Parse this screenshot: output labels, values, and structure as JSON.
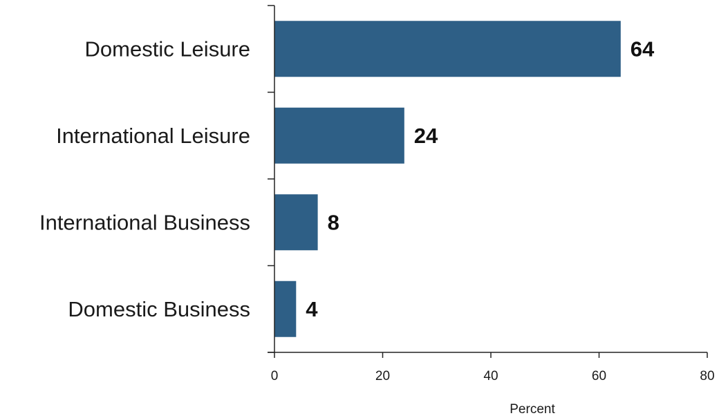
{
  "chart_data": {
    "type": "bar",
    "orientation": "horizontal",
    "categories": [
      "Domestic Leisure",
      "International Leisure",
      "International Business",
      "Domestic Business"
    ],
    "values": [
      64,
      24,
      8,
      4
    ],
    "data_labels": [
      "64",
      "24",
      "8",
      "4"
    ],
    "title": "",
    "xlabel": "Percent",
    "ylabel": "",
    "xlim": [
      0,
      80
    ],
    "x_ticks": [
      0,
      20,
      40,
      60,
      80
    ],
    "x_tick_labels": [
      "0",
      "20",
      "40",
      "60",
      "80"
    ],
    "grid": false,
    "legend": "none",
    "bar_color": "#2e5f86"
  }
}
